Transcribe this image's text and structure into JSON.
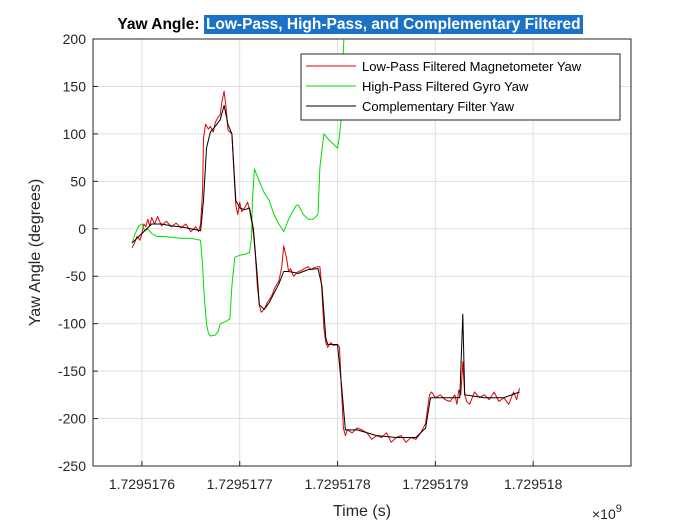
{
  "chart_data": {
    "type": "line",
    "title_part1": "Yaw Angle:",
    "title_part2": "Low-Pass, High-Pass, and Complementary Filtered",
    "xlabel": "Time (s)",
    "ylabel": "Yaw Angle (degrees)",
    "x_exponent_base": "×10",
    "x_exponent_power": "9",
    "xlim": [
      1.72951755,
      1.7295181
    ],
    "ylim": [
      -250,
      200
    ],
    "x_ticks": [
      1.7295176,
      1.7295177,
      1.7295178,
      1.7295179,
      1.729518
    ],
    "x_tick_labels": [
      "1.7295176",
      "1.7295177",
      "1.7295178",
      "1.7295179",
      "1.729518"
    ],
    "y_ticks": [
      -250,
      -200,
      -150,
      -100,
      -50,
      0,
      50,
      100,
      150,
      200
    ],
    "y_tick_labels": [
      "-250",
      "-200",
      "-150",
      "-100",
      "-50",
      "0",
      "50",
      "100",
      "150",
      "200"
    ],
    "grid": true,
    "legend_position": "top-right",
    "series": [
      {
        "name": "Low-Pass Filtered Magnetometer Yaw",
        "color": "#e00000",
        "points": [
          [
            1.72951759,
            -20
          ],
          [
            1.729517592,
            -16
          ],
          [
            1.729517595,
            -8
          ],
          [
            1.729517598,
            -12
          ],
          [
            1.7295176,
            -5
          ],
          [
            1.729517602,
            5
          ],
          [
            1.729517604,
            2
          ],
          [
            1.729517606,
            10
          ],
          [
            1.729517608,
            3
          ],
          [
            1.72951761,
            12
          ],
          [
            1.729517613,
            5
          ],
          [
            1.729517616,
            13
          ],
          [
            1.72951762,
            3
          ],
          [
            1.729517625,
            8
          ],
          [
            1.72951763,
            2
          ],
          [
            1.729517635,
            6
          ],
          [
            1.72951764,
            1
          ],
          [
            1.729517645,
            5
          ],
          [
            1.72951765,
            -3
          ],
          [
            1.729517655,
            2
          ],
          [
            1.729517658,
            -3
          ],
          [
            1.72951766,
            5
          ],
          [
            1.729517662,
            40
          ],
          [
            1.729517663,
            95
          ],
          [
            1.729517665,
            110
          ],
          [
            1.729517668,
            105
          ],
          [
            1.72951767,
            108
          ],
          [
            1.729517673,
            102
          ],
          [
            1.729517675,
            112
          ],
          [
            1.729517678,
            118
          ],
          [
            1.72951768,
            120
          ],
          [
            1.729517682,
            135
          ],
          [
            1.729517684,
            145
          ],
          [
            1.729517686,
            128
          ],
          [
            1.729517688,
            104
          ],
          [
            1.72951769,
            102
          ],
          [
            1.729517692,
            100
          ],
          [
            1.729517694,
            60
          ],
          [
            1.729517696,
            25
          ],
          [
            1.729517698,
            15
          ],
          [
            1.7295177,
            28
          ],
          [
            1.729517702,
            18
          ],
          [
            1.729517705,
            22
          ],
          [
            1.729517708,
            28
          ],
          [
            1.72951771,
            20
          ],
          [
            1.729517712,
            8
          ],
          [
            1.729517714,
            -5
          ],
          [
            1.729517716,
            -28
          ],
          [
            1.729517718,
            -60
          ],
          [
            1.72951772,
            -80
          ],
          [
            1.729517722,
            -88
          ],
          [
            1.729517725,
            -85
          ],
          [
            1.729517728,
            -78
          ],
          [
            1.72951773,
            -75
          ],
          [
            1.729517733,
            -70
          ],
          [
            1.729517736,
            -62
          ],
          [
            1.72951774,
            -55
          ],
          [
            1.729517743,
            -40
          ],
          [
            1.729517745,
            -18
          ],
          [
            1.729517748,
            -32
          ],
          [
            1.72951775,
            -45
          ],
          [
            1.729517752,
            -42
          ],
          [
            1.729517755,
            -50
          ],
          [
            1.729517758,
            -47
          ],
          [
            1.72951776,
            -45
          ],
          [
            1.729517763,
            -44
          ],
          [
            1.729517766,
            -42
          ],
          [
            1.72951777,
            -40
          ],
          [
            1.729517773,
            -43
          ],
          [
            1.729517776,
            -41
          ],
          [
            1.72951778,
            -40
          ],
          [
            1.729517782,
            -40
          ],
          [
            1.729517784,
            -65
          ],
          [
            1.729517786,
            -105
          ],
          [
            1.729517788,
            -120
          ],
          [
            1.72951779,
            -125
          ],
          [
            1.729517793,
            -120
          ],
          [
            1.729517796,
            -123
          ],
          [
            1.7295178,
            -122
          ],
          [
            1.729517802,
            -125
          ],
          [
            1.729517804,
            -170
          ],
          [
            1.729517806,
            -210
          ],
          [
            1.729517808,
            -218
          ],
          [
            1.72951781,
            -212
          ],
          [
            1.729517815,
            -215
          ],
          [
            1.72951782,
            -210
          ],
          [
            1.729517825,
            -212
          ],
          [
            1.72951783,
            -215
          ],
          [
            1.729517835,
            -222
          ],
          [
            1.72951784,
            -218
          ],
          [
            1.729517845,
            -220
          ],
          [
            1.72951785,
            -215
          ],
          [
            1.729517855,
            -225
          ],
          [
            1.72951786,
            -220
          ],
          [
            1.729517865,
            -218
          ],
          [
            1.72951787,
            -225
          ],
          [
            1.729517875,
            -220
          ],
          [
            1.72951788,
            -222
          ],
          [
            1.729517885,
            -215
          ],
          [
            1.72951789,
            -205
          ],
          [
            1.729517892,
            -190
          ],
          [
            1.729517894,
            -175
          ],
          [
            1.729517896,
            -172
          ],
          [
            1.7295179,
            -178
          ],
          [
            1.729517905,
            -175
          ],
          [
            1.72951791,
            -180
          ],
          [
            1.729517915,
            -182
          ],
          [
            1.72951792,
            -175
          ],
          [
            1.729517922,
            -185
          ],
          [
            1.729517924,
            -170
          ],
          [
            1.729517926,
            -175
          ],
          [
            1.729517928,
            -140
          ],
          [
            1.72951793,
            -175
          ],
          [
            1.729517932,
            -182
          ],
          [
            1.729517935,
            -185
          ],
          [
            1.72951794,
            -172
          ],
          [
            1.729517945,
            -178
          ],
          [
            1.72951795,
            -175
          ],
          [
            1.729517955,
            -180
          ],
          [
            1.72951796,
            -172
          ],
          [
            1.729517965,
            -182
          ],
          [
            1.72951797,
            -178
          ],
          [
            1.729517975,
            -185
          ],
          [
            1.72951798,
            -172
          ],
          [
            1.729517983,
            -180
          ],
          [
            1.729517986,
            -168
          ]
        ]
      },
      {
        "name": "High-Pass Filtered Gyro Yaw",
        "color": "#00dd00",
        "points": [
          [
            1.72951759,
            -15
          ],
          [
            1.729517593,
            -5
          ],
          [
            1.729517597,
            3
          ],
          [
            1.7295176,
            5
          ],
          [
            1.729517603,
            -2
          ],
          [
            1.729517606,
            0
          ],
          [
            1.72951761,
            -5
          ],
          [
            1.729517615,
            -8
          ],
          [
            1.72951762,
            -8
          ],
          [
            1.72951763,
            -9
          ],
          [
            1.72951764,
            -10
          ],
          [
            1.72951765,
            -10
          ],
          [
            1.72951766,
            -12
          ],
          [
            1.729517662,
            -40
          ],
          [
            1.729517664,
            -75
          ],
          [
            1.729517666,
            -100
          ],
          [
            1.729517668,
            -110
          ],
          [
            1.72951767,
            -113
          ],
          [
            1.729517675,
            -112
          ],
          [
            1.729517678,
            -108
          ],
          [
            1.72951768,
            -100
          ],
          [
            1.729517685,
            -98
          ],
          [
            1.72951769,
            -95
          ],
          [
            1.729517692,
            -60
          ],
          [
            1.729517695,
            -30
          ],
          [
            1.7295177,
            -28
          ],
          [
            1.729517705,
            -27
          ],
          [
            1.72951771,
            -25
          ],
          [
            1.729517712,
            -10
          ],
          [
            1.729517713,
            30
          ],
          [
            1.729517715,
            63
          ],
          [
            1.72951772,
            50
          ],
          [
            1.729517725,
            38
          ],
          [
            1.72951773,
            30
          ],
          [
            1.729517735,
            15
          ],
          [
            1.72951774,
            5
          ],
          [
            1.729517745,
            -3
          ],
          [
            1.729517748,
            5
          ],
          [
            1.72951775,
            10
          ],
          [
            1.729517755,
            20
          ],
          [
            1.729517758,
            25
          ],
          [
            1.72951776,
            25
          ],
          [
            1.729517765,
            15
          ],
          [
            1.72951777,
            10
          ],
          [
            1.729517775,
            10
          ],
          [
            1.72951778,
            15
          ],
          [
            1.729517782,
            65
          ],
          [
            1.729517786,
            100
          ],
          [
            1.72951779,
            95
          ],
          [
            1.729517795,
            90
          ],
          [
            1.7295178,
            85
          ],
          [
            1.729517802,
            98
          ],
          [
            1.729517804,
            120
          ],
          [
            1.729517806,
            190
          ],
          [
            1.729517808,
            230
          ]
        ]
      },
      {
        "name": "Complementary Filter Yaw",
        "color": "#000000",
        "points": [
          [
            1.72951759,
            -15
          ],
          [
            1.7295176,
            -5
          ],
          [
            1.72951761,
            5
          ],
          [
            1.72951762,
            5
          ],
          [
            1.72951763,
            3
          ],
          [
            1.72951764,
            2
          ],
          [
            1.72951765,
            0
          ],
          [
            1.72951766,
            -2
          ],
          [
            1.729517663,
            30
          ],
          [
            1.729517666,
            85
          ],
          [
            1.72951767,
            102
          ],
          [
            1.729517675,
            108
          ],
          [
            1.72951768,
            115
          ],
          [
            1.729517684,
            130
          ],
          [
            1.729517688,
            110
          ],
          [
            1.729517692,
            100
          ],
          [
            1.729517696,
            30
          ],
          [
            1.7295177,
            22
          ],
          [
            1.729517705,
            20
          ],
          [
            1.72951771,
            22
          ],
          [
            1.729517714,
            0
          ],
          [
            1.729517718,
            -50
          ],
          [
            1.72951772,
            -80
          ],
          [
            1.729517725,
            -85
          ],
          [
            1.72951773,
            -78
          ],
          [
            1.72951774,
            -58
          ],
          [
            1.729517745,
            -45
          ],
          [
            1.72951775,
            -45
          ],
          [
            1.72951776,
            -47
          ],
          [
            1.72951777,
            -43
          ],
          [
            1.72951778,
            -42
          ],
          [
            1.729517784,
            -60
          ],
          [
            1.729517788,
            -115
          ],
          [
            1.72951779,
            -122
          ],
          [
            1.7295178,
            -122
          ],
          [
            1.729517804,
            -165
          ],
          [
            1.729517808,
            -212
          ],
          [
            1.72951782,
            -212
          ],
          [
            1.72951784,
            -218
          ],
          [
            1.72951786,
            -220
          ],
          [
            1.72951788,
            -220
          ],
          [
            1.72951789,
            -210
          ],
          [
            1.729517895,
            -178
          ],
          [
            1.72951791,
            -178
          ],
          [
            1.72951792,
            -178
          ],
          [
            1.729517925,
            -178
          ],
          [
            1.729517928,
            -90
          ],
          [
            1.72951793,
            -175
          ],
          [
            1.72951795,
            -178
          ],
          [
            1.72951797,
            -178
          ],
          [
            1.729517986,
            -172
          ]
        ]
      }
    ]
  }
}
